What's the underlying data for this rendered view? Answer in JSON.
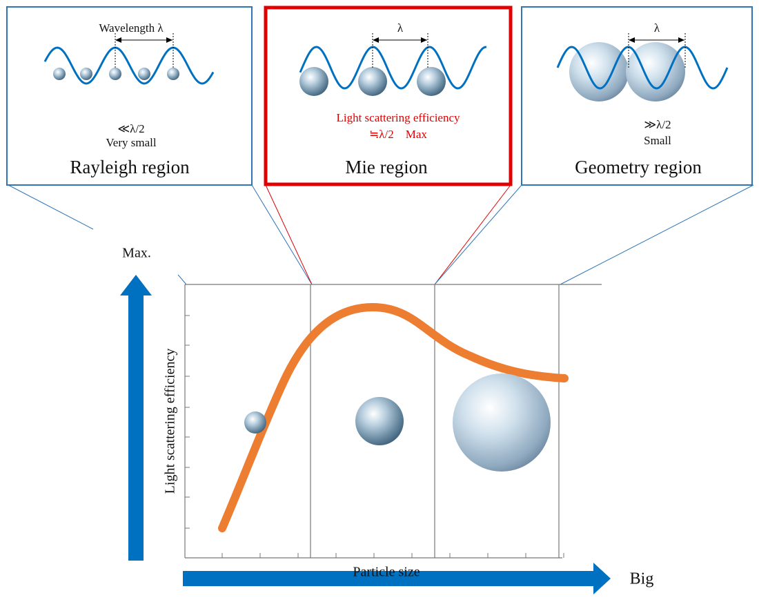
{
  "panels": [
    {
      "wavelength_label": "Wavelength λ",
      "note": [
        "≪λ/2",
        "Very small"
      ],
      "title": "Rayleigh region"
    },
    {
      "wavelength_label": "λ",
      "note": [
        "Light scattering efficiency",
        "≒λ/2　Max"
      ],
      "title": "Mie region"
    },
    {
      "wavelength_label": "λ",
      "note": [
        "≫λ/2",
        "Small"
      ],
      "title": "Geometry region"
    }
  ],
  "graph": {
    "y_top_label": "Max.",
    "y_axis_label": "Light scattering efficiency",
    "x_axis_label": "Particle size",
    "x_end_label": "Big"
  }
}
